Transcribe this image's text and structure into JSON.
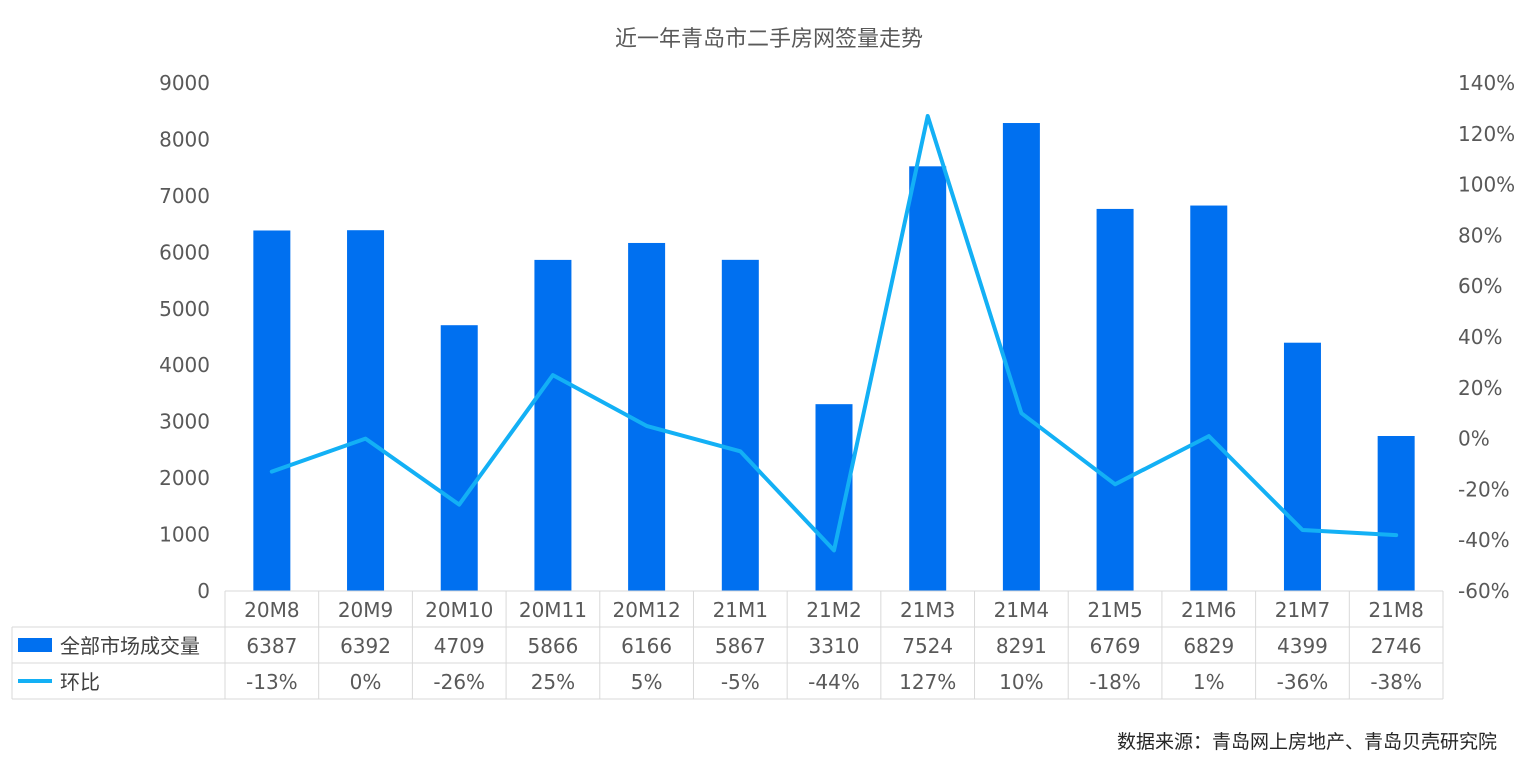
{
  "chart_data": {
    "type": "bar",
    "title": "近一年青岛市二手房网签量走势",
    "categories": [
      "20M8",
      "20M9",
      "20M10",
      "20M11",
      "20M12",
      "21M1",
      "21M2",
      "21M3",
      "21M4",
      "21M5",
      "21M6",
      "21M7",
      "21M8"
    ],
    "series": [
      {
        "name": "全部市场成交量",
        "type": "bar",
        "axis": "left",
        "color": "#0070f0",
        "values": [
          6387,
          6392,
          4709,
          5866,
          6166,
          5867,
          3310,
          7524,
          8291,
          6769,
          6829,
          4399,
          2746
        ]
      },
      {
        "name": "环比",
        "type": "line",
        "axis": "right",
        "color": "#13b0f5",
        "values": [
          -13,
          0,
          -26,
          25,
          5,
          -5,
          -44,
          127,
          10,
          -18,
          1,
          -36,
          -38
        ],
        "labels": [
          "-13%",
          "0%",
          "-26%",
          "25%",
          "5%",
          "-5%",
          "-44%",
          "127%",
          "10%",
          "-18%",
          "1%",
          "-36%",
          "-38%"
        ]
      }
    ],
    "y_left": {
      "range": [
        0,
        9000
      ],
      "ticks": [
        "0",
        "1000",
        "2000",
        "3000",
        "4000",
        "5000",
        "6000",
        "7000",
        "8000",
        "9000"
      ]
    },
    "y_right": {
      "range": [
        -60,
        140
      ],
      "ticks": [
        "-60%",
        "-40%",
        "-20%",
        "0%",
        "20%",
        "40%",
        "60%",
        "80%",
        "100%",
        "120%",
        "140%"
      ]
    },
    "grid": false,
    "legend": "bottom-table"
  },
  "source": "数据来源：青岛网上房地产、青岛贝壳研究院"
}
